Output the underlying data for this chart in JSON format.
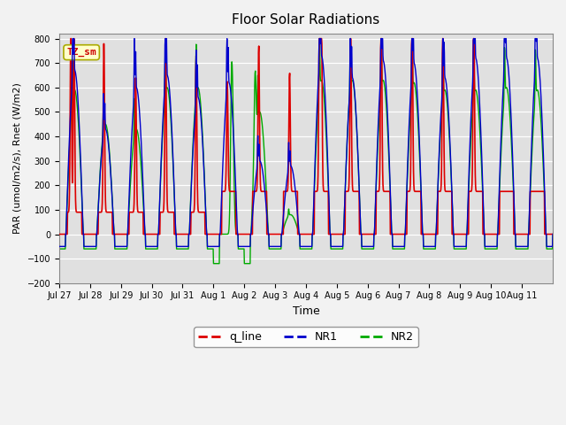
{
  "title": "Floor Solar Radiations",
  "xlabel": "Time",
  "ylabel": "PAR (umol/m2/s), Rnet (W/m2)",
  "ylim": [
    -200,
    820
  ],
  "yticks": [
    -200,
    -100,
    0,
    100,
    200,
    300,
    400,
    500,
    600,
    700,
    800
  ],
  "annotation_text": "TZ_sm",
  "annotation_color": "#cc0000",
  "annotation_bg": "#ffffcc",
  "bg_color": "#e0e0e0",
  "fig_bg": "#f2f2f2",
  "line_colors": {
    "q_line": "#dd0000",
    "NR1": "#0000cc",
    "NR2": "#00aa00"
  },
  "n_days": 16,
  "xtick_labels": [
    "Jul 27",
    "Jul 28",
    "Jul 29",
    "Jul 30",
    "Jul 31",
    "Aug 1",
    "Aug 2",
    "Aug 3",
    "Aug 4",
    "Aug 5",
    "Aug 6",
    "Aug 7",
    "Aug 8",
    "Aug 9",
    "Aug 10",
    "Aug 11"
  ]
}
